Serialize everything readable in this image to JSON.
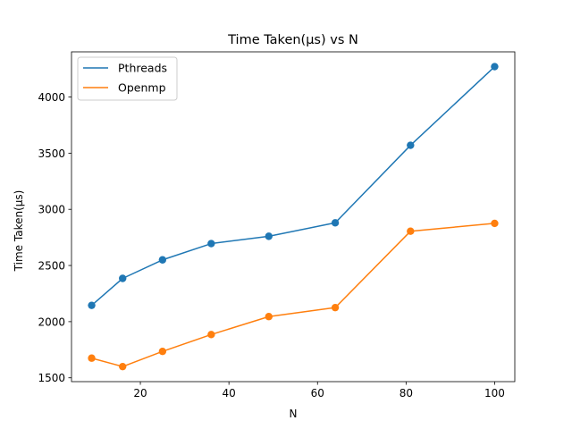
{
  "chart_data": {
    "type": "line",
    "title": "Time Taken(µs) vs N",
    "xlabel": "N",
    "ylabel": "Time Taken(µs)",
    "x": [
      9,
      16,
      25,
      36,
      49,
      64,
      81,
      100
    ],
    "xlim": [
      4.45,
      104.55
    ],
    "ylim": [
      1466,
      4402
    ],
    "x_ticks": [
      20,
      40,
      60,
      80,
      100
    ],
    "y_ticks": [
      1500,
      2000,
      2500,
      3000,
      3500,
      4000
    ],
    "grid": false,
    "legend_position": "top-left",
    "markers": "circle",
    "series": [
      {
        "name": "Pthreads",
        "color": "#1f77b4",
        "values": [
          2145,
          2385,
          2550,
          2695,
          2760,
          2880,
          3570,
          4270
        ]
      },
      {
        "name": "Openmp",
        "color": "#ff7f0e",
        "values": [
          1675,
          1600,
          1735,
          1885,
          2045,
          2125,
          2805,
          2875
        ]
      }
    ]
  }
}
